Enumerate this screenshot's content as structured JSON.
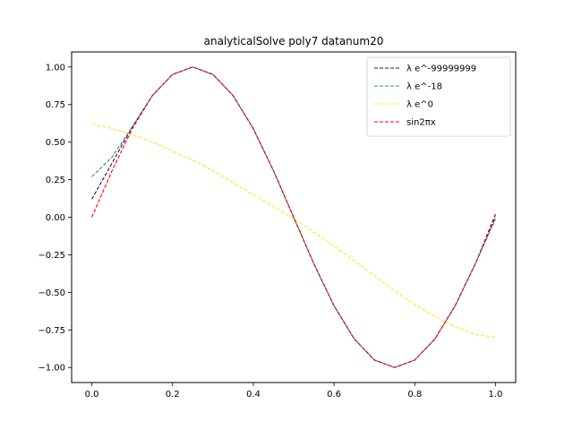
{
  "chart_data": {
    "type": "line",
    "title": "analyticalSolve poly7 datanum20",
    "xlabel": "",
    "ylabel": "",
    "xlim": [
      -0.05,
      1.05
    ],
    "ylim": [
      -1.1,
      1.1
    ],
    "xticks": [
      0.0,
      0.2,
      0.4,
      0.6,
      0.8,
      1.0
    ],
    "xtick_labels": [
      "0.0",
      "0.2",
      "0.4",
      "0.6",
      "0.8",
      "1.0"
    ],
    "yticks": [
      -1.0,
      -0.75,
      -0.5,
      -0.25,
      0.0,
      0.25,
      0.5,
      0.75,
      1.0
    ],
    "ytick_labels": [
      "−1.00",
      "−0.75",
      "−0.50",
      "−0.25",
      "0.00",
      "0.25",
      "0.50",
      "0.75",
      "1.00"
    ],
    "grid": false,
    "legend_position": "top-right",
    "x": [
      0.0,
      0.05,
      0.1,
      0.15,
      0.2,
      0.25,
      0.3,
      0.35,
      0.4,
      0.45,
      0.5,
      0.55,
      0.6,
      0.65,
      0.7,
      0.75,
      0.8,
      0.85,
      0.9,
      0.95,
      1.0
    ],
    "series": [
      {
        "name": "λ e^-99999999",
        "color": "#440154",
        "values": [
          0.12,
          0.36,
          0.6,
          0.81,
          0.95,
          1.0,
          0.95,
          0.81,
          0.59,
          0.31,
          0.0,
          -0.31,
          -0.59,
          -0.81,
          -0.95,
          -1.0,
          -0.95,
          -0.81,
          -0.59,
          -0.31,
          0.02
        ]
      },
      {
        "name": "λ e^-18",
        "color": "#21918c",
        "values": [
          0.27,
          0.4,
          0.6,
          0.81,
          0.95,
          1.0,
          0.95,
          0.81,
          0.59,
          0.31,
          0.0,
          -0.31,
          -0.59,
          -0.81,
          -0.95,
          -1.0,
          -0.95,
          -0.81,
          -0.59,
          -0.31,
          -0.01
        ]
      },
      {
        "name": "λ e^0",
        "color": "#fde725",
        "values": [
          0.62,
          0.59,
          0.55,
          0.5,
          0.44,
          0.38,
          0.31,
          0.23,
          0.15,
          0.07,
          -0.01,
          -0.1,
          -0.19,
          -0.29,
          -0.39,
          -0.49,
          -0.58,
          -0.66,
          -0.73,
          -0.78,
          -0.8
        ]
      },
      {
        "name": "sin2πx",
        "color": "#ff0000",
        "values": [
          0.0,
          0.309,
          0.588,
          0.809,
          0.951,
          1.0,
          0.951,
          0.809,
          0.588,
          0.309,
          0.0,
          -0.309,
          -0.588,
          -0.809,
          -0.951,
          -1.0,
          -0.951,
          -0.809,
          -0.588,
          -0.309,
          0.0
        ]
      }
    ]
  }
}
